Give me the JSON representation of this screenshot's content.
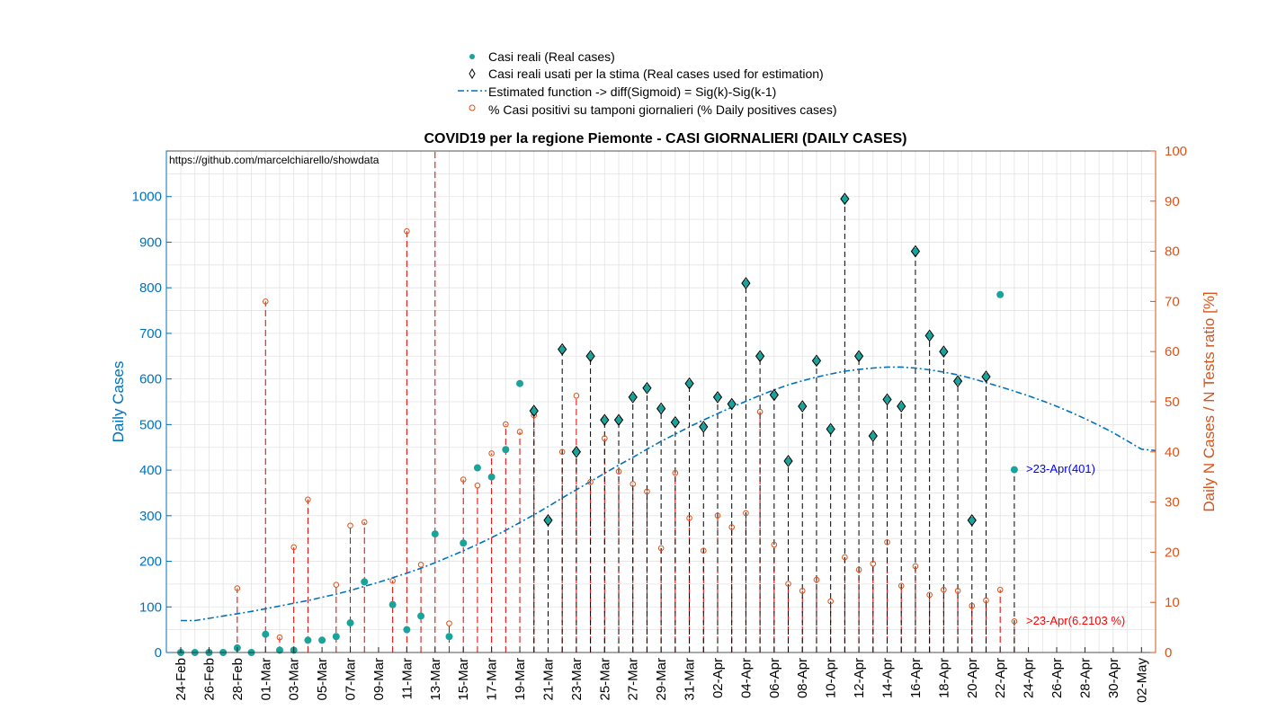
{
  "chart_data": {
    "type": "scatter",
    "title": "COVID19 per la regione Piemonte - CASI GIORNALIERI (DAILY CASES)",
    "source_text": "https://github.com/marcelchiarello/showdata",
    "ylabel_left": "Daily Cases",
    "ylabel_right": "Daily N Cases / N Tests ratio [%]",
    "ylim_left": [
      0,
      1100
    ],
    "ylim_right": [
      0,
      100
    ],
    "yticks_left": [
      0,
      100,
      200,
      300,
      400,
      500,
      600,
      700,
      800,
      900,
      1000
    ],
    "yticks_right": [
      0,
      10,
      20,
      30,
      40,
      50,
      60,
      70,
      80,
      90,
      100
    ],
    "grid": true,
    "legend_placement": "top-center (outside)",
    "colors": {
      "axis_left": "#0072BD",
      "axis_right": "#D95319",
      "real_marker": "#1AA39A",
      "fit_line": "#0072BD",
      "stem_real": "#000000",
      "stem_ratio": "#E00000",
      "annotation_left": "#0000FF",
      "annotation_right": "#FF0000"
    },
    "x_tick_labels": [
      "24-Feb",
      "26-Feb",
      "28-Feb",
      "01-Mar",
      "03-Mar",
      "05-Mar",
      "07-Mar",
      "09-Mar",
      "11-Mar",
      "13-Mar",
      "15-Mar",
      "17-Mar",
      "19-Mar",
      "21-Mar",
      "23-Mar",
      "25-Mar",
      "27-Mar",
      "29-Mar",
      "31-Mar",
      "02-Apr",
      "04-Apr",
      "06-Apr",
      "08-Apr",
      "10-Apr",
      "12-Apr",
      "14-Apr",
      "16-Apr",
      "18-Apr",
      "20-Apr",
      "22-Apr",
      "24-Apr",
      "26-Apr",
      "28-Apr",
      "30-Apr",
      "02-May"
    ],
    "x_start_date": "24-Feb",
    "x_end_date": "03-May",
    "legend": [
      {
        "label": "Casi reali (Real cases)",
        "marker": "dot"
      },
      {
        "label": "Casi reali usati per la stima (Real cases used for estimation)",
        "marker": "diamond"
      },
      {
        "label": "Estimated function -> diff(Sigmoid) = Sig(k)-Sig(k-1)",
        "marker": "dashdot"
      },
      {
        "label": "% Casi positivi su tamponi giornalieri (% Daily positives cases)",
        "marker": "circle"
      }
    ],
    "real_cases": {
      "name": "Casi reali (Real cases)",
      "dates": [
        "24-Feb",
        "25-Feb",
        "26-Feb",
        "27-Feb",
        "28-Feb",
        "29-Feb",
        "01-Mar",
        "02-Mar",
        "03-Mar",
        "04-Mar",
        "05-Mar",
        "06-Mar",
        "07-Mar",
        "08-Mar",
        "09-Mar",
        "10-Mar",
        "11-Mar",
        "12-Mar",
        "13-Mar",
        "14-Mar",
        "15-Mar",
        "16-Mar",
        "17-Mar",
        "18-Mar",
        "19-Mar",
        "20-Mar",
        "21-Mar",
        "22-Mar",
        "23-Mar",
        "24-Mar",
        "25-Mar",
        "26-Mar",
        "27-Mar",
        "28-Mar",
        "29-Mar",
        "30-Mar",
        "31-Mar",
        "01-Apr",
        "02-Apr",
        "03-Apr",
        "04-Apr",
        "05-Apr",
        "06-Apr",
        "07-Apr",
        "08-Apr",
        "09-Apr",
        "10-Apr",
        "11-Apr",
        "12-Apr",
        "13-Apr",
        "14-Apr",
        "15-Apr",
        "16-Apr",
        "17-Apr",
        "18-Apr",
        "19-Apr",
        "20-Apr",
        "21-Apr",
        "22-Apr",
        "23-Apr"
      ],
      "values": [
        0,
        0,
        0,
        0,
        10,
        0,
        40,
        5,
        5,
        27,
        27,
        35,
        65,
        155,
        null,
        105,
        50,
        80,
        260,
        35,
        240,
        405,
        385,
        445,
        590,
        530,
        290,
        665,
        440,
        650,
        510,
        510,
        560,
        580,
        535,
        505,
        590,
        495,
        560,
        545,
        810,
        650,
        565,
        420,
        540,
        640,
        490,
        995,
        650,
        475,
        555,
        540,
        880,
        695,
        660,
        595,
        290,
        605,
        785,
        401
      ],
      "used_for_estimation": [
        "20-Mar",
        "21-Mar",
        "22-Mar",
        "23-Mar",
        "24-Mar",
        "25-Mar",
        "26-Mar",
        "27-Mar",
        "28-Mar",
        "29-Mar",
        "30-Mar",
        "31-Mar",
        "01-Apr",
        "02-Apr",
        "03-Apr",
        "04-Apr",
        "05-Apr",
        "06-Apr",
        "07-Apr",
        "08-Apr",
        "09-Apr",
        "10-Apr",
        "11-Apr",
        "12-Apr",
        "13-Apr",
        "14-Apr",
        "15-Apr",
        "16-Apr",
        "17-Apr",
        "18-Apr",
        "19-Apr",
        "20-Apr",
        "21-Apr"
      ]
    },
    "estimated_function": {
      "name": "Estimated function -> diff(Sigmoid) = Sig(k)-Sig(k-1)",
      "x_range": [
        "24-Feb",
        "03-May"
      ],
      "y": [
        70,
        70,
        75,
        80,
        85,
        90,
        96,
        102,
        108,
        114,
        121,
        128,
        136,
        145,
        154,
        164,
        174,
        185,
        197,
        210,
        223,
        237,
        252,
        268,
        285,
        302,
        320,
        339,
        357,
        375,
        393,
        411,
        428,
        446,
        463,
        479,
        495,
        510,
        524,
        538,
        551,
        564,
        576,
        587,
        596,
        604,
        611,
        617,
        621,
        624,
        626,
        626,
        624,
        620,
        615,
        609,
        601,
        592,
        583,
        573,
        563,
        552,
        540,
        527,
        513,
        498,
        482,
        464,
        446,
        443
      ]
    },
    "positive_ratio": {
      "name": "% Casi positivi su tamponi giornalieri (% Daily positives cases)",
      "dates": [
        "28-Feb",
        "01-Mar",
        "02-Mar",
        "03-Mar",
        "04-Mar",
        "06-Mar",
        "07-Mar",
        "08-Mar",
        "10-Mar",
        "11-Mar",
        "12-Mar",
        "14-Mar",
        "15-Mar",
        "16-Mar",
        "17-Mar",
        "18-Mar",
        "19-Mar",
        "20-Mar",
        "22-Mar",
        "23-Mar",
        "24-Mar",
        "25-Mar",
        "26-Mar",
        "27-Mar",
        "28-Mar",
        "29-Mar",
        "30-Mar",
        "31-Mar",
        "01-Apr",
        "02-Apr",
        "03-Apr",
        "04-Apr",
        "05-Apr",
        "06-Apr",
        "07-Apr",
        "08-Apr",
        "09-Apr",
        "10-Apr",
        "11-Apr",
        "12-Apr",
        "13-Apr",
        "14-Apr",
        "15-Apr",
        "16-Apr",
        "17-Apr",
        "18-Apr",
        "19-Apr",
        "20-Apr",
        "21-Apr",
        "22-Apr",
        "23-Apr"
      ],
      "values": [
        12.8,
        70,
        3,
        21,
        30.5,
        13.5,
        25.3,
        26,
        14.3,
        84,
        17.5,
        5.8,
        34.5,
        33.3,
        39.7,
        45.5,
        44,
        47.3,
        40,
        51.2,
        34,
        42.7,
        36.1,
        33.6,
        32.1,
        20.8,
        35.8,
        26.8,
        20.3,
        27.3,
        25,
        27.8,
        48,
        21.5,
        13.7,
        12.3,
        14.5,
        10.2,
        19,
        16.5,
        17.7,
        22,
        13.3,
        17.2,
        11.5,
        12.5,
        12.3,
        9.3,
        10.4,
        12.5,
        6.2103
      ]
    },
    "stems_beyond_top": [
      "13-Mar"
    ],
    "annotations": {
      "last_real": ">23-Apr(401)",
      "last_ratio": ">23-Apr(6.2103 %)"
    }
  }
}
